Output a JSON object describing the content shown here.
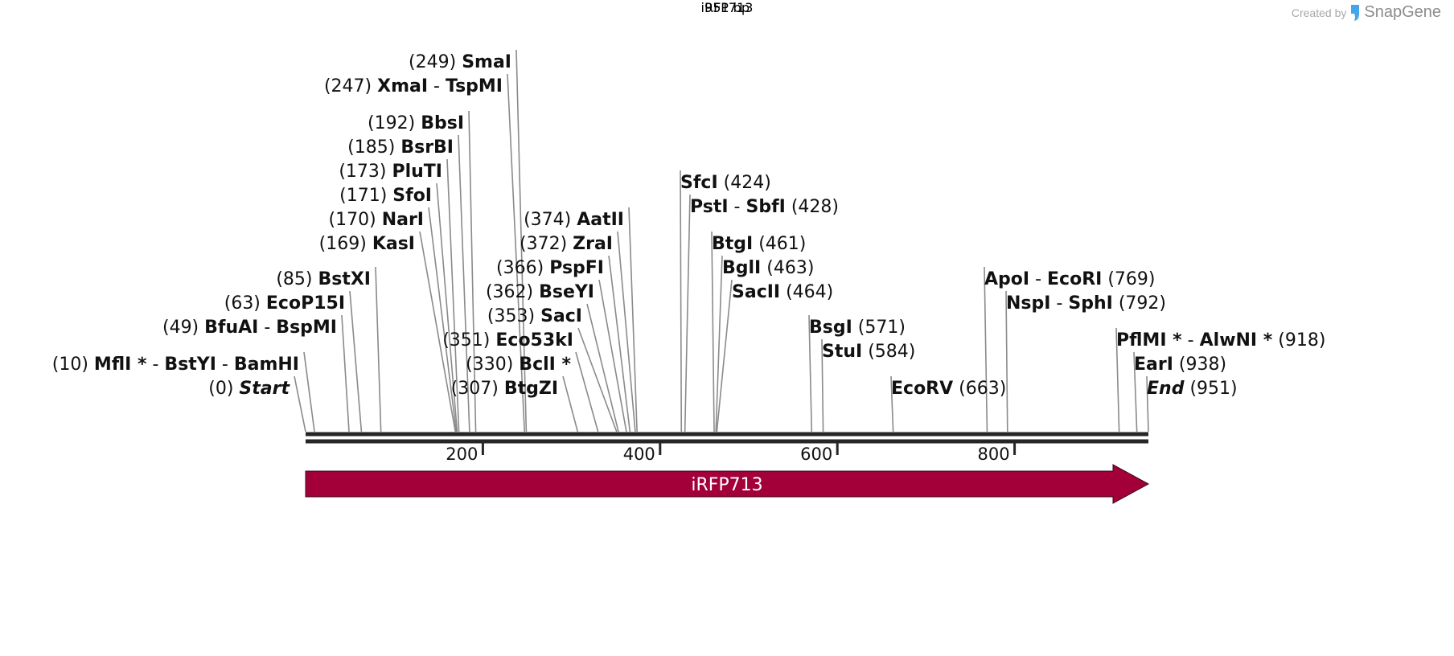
{
  "watermark": {
    "created_by": "Created by",
    "brand": "SnapGene",
    "logo_icon": "snapgene-logo-icon"
  },
  "sequence": {
    "name": "iRFP713",
    "length_label": "951 bp",
    "length": 951
  },
  "ruler": {
    "ticks": [
      200,
      400,
      600,
      800
    ]
  },
  "feature": {
    "label": "iRFP713",
    "start": 0,
    "end": 951,
    "direction": "forward",
    "color": "#a3003a"
  },
  "labels_left": [
    {
      "pos": "(249)",
      "names": [
        "SmaI"
      ],
      "sites": [
        249
      ]
    },
    {
      "pos": "(247)",
      "names": [
        "XmaI",
        "TspMI"
      ],
      "sites": [
        247
      ]
    },
    {
      "pos": "(192)",
      "names": [
        "BbsI"
      ],
      "sites": [
        192
      ]
    },
    {
      "pos": "(185)",
      "names": [
        "BsrBI"
      ],
      "sites": [
        185
      ]
    },
    {
      "pos": "(173)",
      "names": [
        "PluTI"
      ],
      "sites": [
        173
      ]
    },
    {
      "pos": "(171)",
      "names": [
        "SfoI"
      ],
      "sites": [
        171
      ]
    },
    {
      "pos": "(170)",
      "names": [
        "NarI"
      ],
      "sites": [
        170
      ]
    },
    {
      "pos": "(169)",
      "names": [
        "KasI"
      ],
      "sites": [
        169
      ]
    },
    {
      "pos": "(374)",
      "names": [
        "AatII"
      ],
      "sites": [
        374
      ]
    },
    {
      "pos": "(372)",
      "names": [
        "ZraI"
      ],
      "sites": [
        372
      ]
    },
    {
      "pos": "(366)",
      "names": [
        "PspFI"
      ],
      "sites": [
        366
      ]
    },
    {
      "pos": "(362)",
      "names": [
        "BseYI"
      ],
      "sites": [
        362
      ]
    },
    {
      "pos": "(353)",
      "names": [
        "SacI"
      ],
      "sites": [
        353
      ]
    },
    {
      "pos": "(351)",
      "names": [
        "Eco53kI"
      ],
      "sites": [
        351
      ]
    },
    {
      "pos": "(330)",
      "names": [
        "BclI *"
      ],
      "sites": [
        330
      ]
    },
    {
      "pos": "(307)",
      "names": [
        "BtgZI"
      ],
      "sites": [
        307
      ]
    },
    {
      "pos": "(85)",
      "names": [
        "BstXI"
      ],
      "sites": [
        85
      ]
    },
    {
      "pos": "(63)",
      "names": [
        "EcoP15I"
      ],
      "sites": [
        63
      ]
    },
    {
      "pos": "(49)",
      "names": [
        "BfuAI",
        "BspMI"
      ],
      "sites": [
        49
      ]
    },
    {
      "pos": "(10)",
      "names": [
        "MflI *",
        "BstYI",
        "BamHI"
      ],
      "sites": [
        10
      ]
    },
    {
      "pos": "(0)",
      "names": [
        "Start"
      ],
      "sites": [
        0
      ],
      "italic": true
    }
  ],
  "labels_right": [
    {
      "names": [
        "SfcI"
      ],
      "pos": "(424)",
      "sites": [
        424
      ]
    },
    {
      "names": [
        "PstI",
        "SbfI"
      ],
      "pos": "(428)",
      "sites": [
        428
      ]
    },
    {
      "names": [
        "BtgI"
      ],
      "pos": "(461)",
      "sites": [
        461
      ]
    },
    {
      "names": [
        "BglI"
      ],
      "pos": "(463)",
      "sites": [
        463
      ]
    },
    {
      "names": [
        "SacII"
      ],
      "pos": "(464)",
      "sites": [
        464
      ]
    },
    {
      "names": [
        "BsgI"
      ],
      "pos": "(571)",
      "sites": [
        571
      ]
    },
    {
      "names": [
        "StuI"
      ],
      "pos": "(584)",
      "sites": [
        584
      ]
    },
    {
      "names": [
        "EcoRV"
      ],
      "pos": "(663)",
      "sites": [
        663
      ]
    },
    {
      "names": [
        "ApoI",
        "EcoRI"
      ],
      "pos": "(769)",
      "sites": [
        769
      ]
    },
    {
      "names": [
        "NspI",
        "SphI"
      ],
      "pos": "(792)",
      "sites": [
        792
      ]
    },
    {
      "names": [
        "PflMI *",
        "AlwNI *"
      ],
      "pos": "(918)",
      "sites": [
        918
      ]
    },
    {
      "names": [
        "EarI"
      ],
      "pos": "(938)",
      "sites": [
        938
      ]
    },
    {
      "names": [
        "End"
      ],
      "pos": "(951)",
      "sites": [
        951
      ],
      "italic": true
    }
  ]
}
